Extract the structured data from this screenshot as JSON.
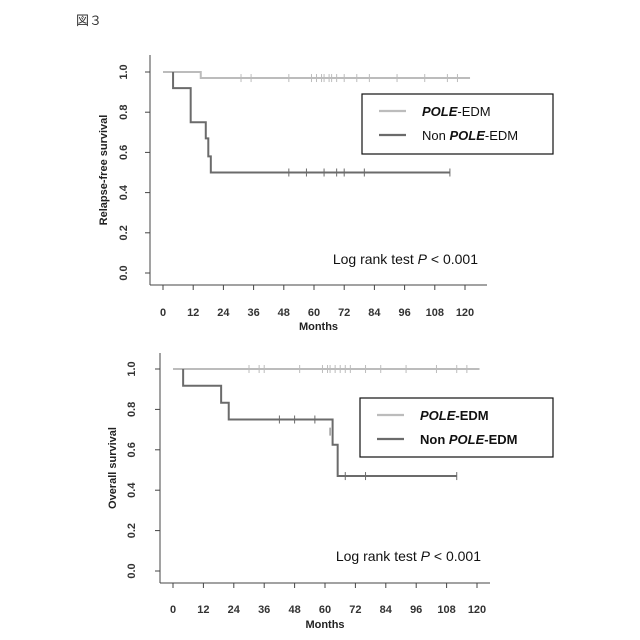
{
  "figure_label": "図３",
  "colors": {
    "pole": "#bcbcbc",
    "non_pole": "#6b6b6b",
    "axis": "#444444"
  },
  "chart_data": [
    {
      "type": "line",
      "step": true,
      "title": "",
      "xlabel": "Months",
      "ylabel": "Relapse-free survival",
      "xlim": [
        0,
        120
      ],
      "ylim": [
        0,
        1
      ],
      "xticks": [
        0,
        12,
        24,
        36,
        48,
        60,
        72,
        84,
        96,
        108,
        120
      ],
      "xtick_labels": [
        "0",
        "12",
        "24",
        "36",
        "48",
        "60",
        "72",
        "84",
        "96",
        "108",
        "120"
      ],
      "yticks": [
        0,
        0.2,
        0.4,
        0.6,
        0.8,
        1.0
      ],
      "ytick_labels": [
        "0.0",
        "0.2",
        "0.4",
        "0.6",
        "0.8",
        "1.0"
      ],
      "legend": [
        {
          "italic": "POLE",
          "rest": "-EDM",
          "prefix": "",
          "bold": false,
          "color": "pole"
        },
        {
          "prefix": "Non ",
          "italic": "POLE",
          "rest": "-EDM",
          "bold": false,
          "color": "non_pole"
        }
      ],
      "annotation": {
        "text": "Log rank test ",
        "p": "P",
        "rest": " < 0.001"
      },
      "series": [
        {
          "key": "pole",
          "steps": [
            [
              0,
              1.0
            ],
            [
              15,
              1.0
            ],
            [
              15,
              0.97
            ],
            [
              122,
              0.97
            ]
          ],
          "censors": [
            [
              31,
              0.97
            ],
            [
              35,
              0.97
            ],
            [
              50,
              0.97
            ],
            [
              59,
              0.97
            ],
            [
              61,
              0.97
            ],
            [
              63,
              0.97
            ],
            [
              64,
              0.97
            ],
            [
              66,
              0.97
            ],
            [
              67,
              0.97
            ],
            [
              69,
              0.97
            ],
            [
              72,
              0.97
            ],
            [
              77,
              0.97
            ],
            [
              82,
              0.97
            ],
            [
              93,
              0.97
            ],
            [
              104,
              0.97
            ],
            [
              113,
              0.97
            ],
            [
              117,
              0.97
            ]
          ]
        },
        {
          "key": "non_pole",
          "steps": [
            [
              4,
              1.0
            ],
            [
              4,
              0.92
            ],
            [
              11,
              0.92
            ],
            [
              11,
              0.75
            ],
            [
              17,
              0.75
            ],
            [
              17,
              0.67
            ],
            [
              18,
              0.67
            ],
            [
              18,
              0.58
            ],
            [
              19,
              0.58
            ],
            [
              19,
              0.5
            ],
            [
              114,
              0.5
            ]
          ],
          "censors": [
            [
              50,
              0.5
            ],
            [
              57,
              0.5
            ],
            [
              64,
              0.5
            ],
            [
              69,
              0.5
            ],
            [
              72,
              0.5
            ],
            [
              80,
              0.5
            ],
            [
              114,
              0.5
            ]
          ]
        }
      ]
    },
    {
      "type": "line",
      "step": true,
      "title": "",
      "xlabel": "Months",
      "ylabel": "Overall survival",
      "xlim": [
        0,
        120
      ],
      "ylim": [
        0,
        1
      ],
      "xticks": [
        0,
        12,
        24,
        36,
        48,
        60,
        72,
        84,
        96,
        108,
        120
      ],
      "xtick_labels": [
        "0",
        "12",
        "24",
        "36",
        "48",
        "60",
        "72",
        "84",
        "96",
        "108",
        "120"
      ],
      "yticks": [
        0,
        0.2,
        0.4,
        0.6,
        0.8,
        1.0
      ],
      "ytick_labels": [
        "0.0",
        "0.2",
        "0.4",
        "0.6",
        "0.8",
        "1.0"
      ],
      "legend": [
        {
          "italic": "POLE",
          "rest": "-EDM",
          "prefix": "",
          "bold": true,
          "color": "pole"
        },
        {
          "prefix": "Non ",
          "italic": "POLE",
          "rest": "-EDM",
          "bold": true,
          "color": "non_pole"
        }
      ],
      "annotation": {
        "text": "Log rank test ",
        "p": "P",
        "rest": " < 0.001"
      },
      "series": [
        {
          "key": "pole",
          "steps": [
            [
              0,
              1.0
            ],
            [
              121,
              1.0
            ]
          ],
          "censors": [
            [
              30,
              1.0
            ],
            [
              34,
              1.0
            ],
            [
              36,
              1.0
            ],
            [
              50,
              1.0
            ],
            [
              59,
              1.0
            ],
            [
              61,
              1.0
            ],
            [
              62,
              1.0
            ],
            [
              64,
              1.0
            ],
            [
              66,
              1.0
            ],
            [
              68,
              1.0
            ],
            [
              70,
              1.0
            ],
            [
              76,
              1.0
            ],
            [
              82,
              1.0
            ],
            [
              92,
              1.0
            ],
            [
              104,
              1.0
            ],
            [
              112,
              1.0
            ],
            [
              116,
              1.0
            ]
          ]
        },
        {
          "key": "non_pole",
          "steps": [
            [
              4,
              1.0
            ],
            [
              4,
              0.917
            ],
            [
              19,
              0.917
            ],
            [
              19,
              0.833
            ],
            [
              22,
              0.833
            ],
            [
              22,
              0.75
            ],
            [
              63,
              0.75
            ],
            [
              63,
              0.625
            ],
            [
              65,
              0.625
            ],
            [
              65,
              0.47
            ],
            [
              112,
              0.47
            ]
          ],
          "censors": [
            [
              42,
              0.75
            ],
            [
              48,
              0.75
            ],
            [
              56,
              0.75
            ],
            [
              62,
              0.69
            ],
            [
              68,
              0.47
            ],
            [
              76,
              0.47
            ],
            [
              112,
              0.47
            ]
          ]
        }
      ]
    }
  ]
}
